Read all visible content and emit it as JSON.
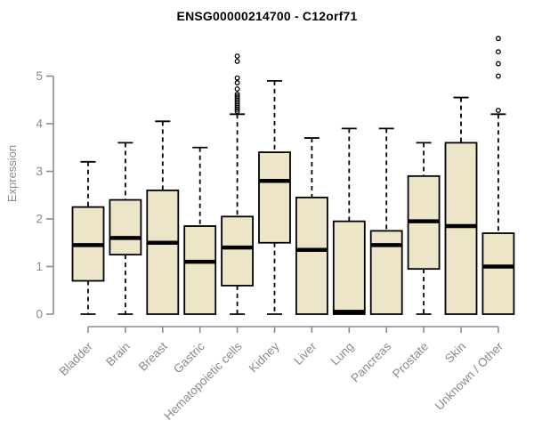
{
  "chart_data": {
    "type": "boxplot",
    "title": "ENSG00000214700 - C12orf71",
    "xlabel": "",
    "ylabel": "Expression",
    "ylim": [
      0,
      5.85
    ],
    "yticks": [
      0,
      1,
      2,
      3,
      4,
      5
    ],
    "grid": false,
    "legend": null,
    "whisker_style": "dashed",
    "outlier_marker": "open-circle",
    "categories": [
      "Bladder",
      "Brain",
      "Breast",
      "Gastric",
      "Hematopoietic cells",
      "Kidney",
      "Liver",
      "Lung",
      "Pancreas",
      "Prostate",
      "Skin",
      "Unknown / Other"
    ],
    "boxes": [
      {
        "category": "Bladder",
        "whisker_low": 0,
        "q1": 0.7,
        "median": 1.45,
        "q3": 2.25,
        "whisker_high": 3.2,
        "outliers": []
      },
      {
        "category": "Brain",
        "whisker_low": 0,
        "q1": 1.25,
        "median": 1.6,
        "q3": 2.4,
        "whisker_high": 3.6,
        "outliers": []
      },
      {
        "category": "Breast",
        "whisker_low": 0,
        "q1": 0.0,
        "median": 1.5,
        "q3": 2.6,
        "whisker_high": 4.05,
        "outliers": []
      },
      {
        "category": "Gastric",
        "whisker_low": 0,
        "q1": 0.0,
        "median": 1.1,
        "q3": 1.85,
        "whisker_high": 3.5,
        "outliers": []
      },
      {
        "category": "Hematopoietic cells",
        "whisker_low": 0,
        "q1": 0.6,
        "median": 1.4,
        "q3": 2.05,
        "whisker_high": 4.2,
        "outliers": [
          4.26,
          4.3,
          4.34,
          4.38,
          4.42,
          4.46,
          4.5,
          4.54,
          4.58,
          4.62,
          4.73,
          4.86,
          4.96,
          5.31,
          5.42
        ]
      },
      {
        "category": "Kidney",
        "whisker_low": 0,
        "q1": 1.5,
        "median": 2.8,
        "q3": 3.4,
        "whisker_high": 4.9,
        "outliers": []
      },
      {
        "category": "Liver",
        "whisker_low": 0,
        "q1": 0.0,
        "median": 1.35,
        "q3": 2.45,
        "whisker_high": 3.7,
        "outliers": []
      },
      {
        "category": "Lung",
        "whisker_low": 0,
        "q1": 0.0,
        "median": 0.05,
        "q3": 1.95,
        "whisker_high": 3.9,
        "outliers": []
      },
      {
        "category": "Pancreas",
        "whisker_low": 0,
        "q1": 0.0,
        "median": 1.45,
        "q3": 1.75,
        "whisker_high": 3.9,
        "outliers": []
      },
      {
        "category": "Prostate",
        "whisker_low": 0,
        "q1": 0.95,
        "median": 1.95,
        "q3": 2.9,
        "whisker_high": 3.6,
        "outliers": []
      },
      {
        "category": "Skin",
        "whisker_low": 0,
        "q1": 0.0,
        "median": 1.85,
        "q3": 3.6,
        "whisker_high": 4.55,
        "outliers": []
      },
      {
        "category": "Unknown / Other",
        "whisker_low": 0,
        "q1": 0.0,
        "median": 1.0,
        "q3": 1.7,
        "whisker_high": 4.2,
        "outliers": [
          4.28,
          5.0,
          5.26,
          5.51,
          5.79
        ]
      }
    ],
    "style": {
      "box_fill": "#ECE5C8",
      "box_stroke": "#000000",
      "median_color": "#000000",
      "axis_color": "#8c8c8c",
      "tick_label_color": "#8a8a8a",
      "title_color": "#000000",
      "background": "#ffffff"
    }
  }
}
